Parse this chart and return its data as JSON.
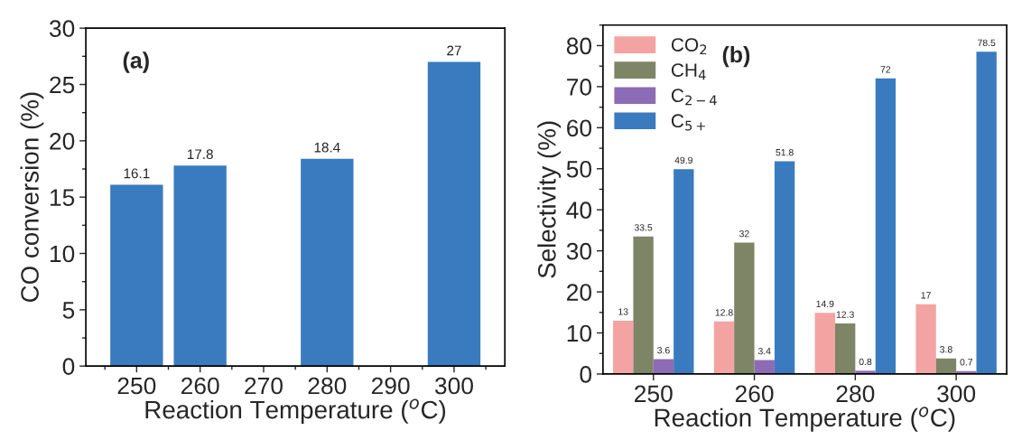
{
  "chart_data": [
    {
      "type": "bar",
      "x": [
        250,
        260,
        280,
        300
      ],
      "values": [
        16.1,
        17.8,
        18.4,
        27
      ],
      "color": "#3a7bbf",
      "xlim": [
        242,
        308
      ],
      "xticks": [
        250,
        260,
        270,
        280,
        290,
        300
      ],
      "ylim": [
        0,
        30
      ],
      "yticks": [
        0,
        5,
        10,
        15,
        20,
        25,
        30
      ],
      "xlabel": "Reaction Temperature ($^{o}$C)",
      "ylabel": "CO conversion (%)",
      "annotations": [
        "(a)"
      ],
      "data_labels": true,
      "grid": false
    },
    {
      "type": "bar",
      "categories": [
        "250",
        "260",
        "280",
        "300"
      ],
      "series": [
        {
          "name": "CO$_{2}$",
          "color": "#f4a3a3",
          "values": [
            13,
            12.8,
            14.9,
            17
          ]
        },
        {
          "name": "CH$_{4}$",
          "color": "#7e8466",
          "values": [
            33.5,
            32,
            12.3,
            3.8
          ]
        },
        {
          "name": "C$_{2−4}$",
          "color": "#8c6cb4",
          "values": [
            3.6,
            3.4,
            0.8,
            0.7
          ]
        },
        {
          "name": "C$_{5+}$",
          "color": "#3a7bbf",
          "values": [
            49.9,
            51.8,
            72,
            78.5
          ]
        }
      ],
      "ylim": [
        0,
        85
      ],
      "yticks": [
        0,
        10,
        20,
        30,
        40,
        50,
        60,
        70,
        80
      ],
      "xlabel": "Reaction Temperature ($^{o}$C)",
      "ylabel": "Selectivity (%)",
      "annotations": [
        "(b)"
      ],
      "data_labels": true,
      "grid": false,
      "legend": "top left"
    }
  ]
}
